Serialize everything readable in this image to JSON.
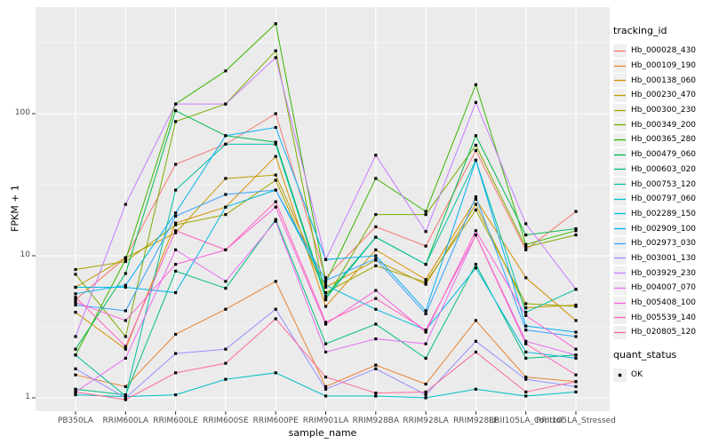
{
  "figure": {
    "background": "#FFFFFF",
    "panel_bg": "#EBEBEB",
    "grid_color": "#FFFFFF",
    "tick_label_color": "#4D4D4D",
    "axis_title_color": "#000000",
    "legend_key_bg": "#F0F0F0",
    "point_color": "#000000"
  },
  "chart_data": {
    "type": "line",
    "title": "",
    "xlabel": "sample_name",
    "ylabel": "FPKM + 1",
    "y_scale": "log10",
    "y_ticks": [
      1,
      10,
      100
    ],
    "ylim": [
      0.8,
      550
    ],
    "grid": true,
    "legend_position": "right",
    "legend_title": "tracking_id",
    "quant_legend": {
      "title": "quant_status",
      "items": [
        "OK"
      ]
    },
    "point_marker": "black-square",
    "categories": [
      "PB350LA",
      "RRIM600LA",
      "RRIM600LE",
      "RRIM600SE",
      "RRIM600PE",
      "RRIM901LA",
      "RRIM928BA",
      "RRIM928LA",
      "RRIM928LE",
      "RRII105LA_Control",
      "RRII105LA_Stressed"
    ],
    "series": [
      {
        "name": "Hb_000028_430",
        "color": "#F8766D",
        "values": [
          4.9,
          9.7,
          44,
          61,
          100,
          7.0,
          16,
          11.7,
          55,
          11,
          20.5
        ]
      },
      {
        "name": "Hb_000109_190",
        "color": "#EA8331",
        "values": [
          1.45,
          1.2,
          2.8,
          4.2,
          6.6,
          1.2,
          1.7,
          1.25,
          3.5,
          1.4,
          1.3
        ]
      },
      {
        "name": "Hb_000138_060",
        "color": "#D89000",
        "values": [
          4.0,
          2.2,
          17,
          22,
          50,
          4.4,
          11,
          6.8,
          25,
          7.0,
          3.5
        ]
      },
      {
        "name": "Hb_000230_470",
        "color": "#C09B00",
        "values": [
          6.0,
          9.7,
          14.5,
          35,
          37,
          6.0,
          9.3,
          6.3,
          23,
          4.3,
          4.5
        ]
      },
      {
        "name": "Hb_000300_230",
        "color": "#A3A500",
        "values": [
          8.0,
          9.1,
          16.5,
          19.5,
          34,
          5.5,
          8.5,
          6.5,
          21,
          4.6,
          4.4
        ]
      },
      {
        "name": "Hb_000349_200",
        "color": "#7CAE00",
        "values": [
          7.4,
          2.7,
          88,
          117,
          277,
          4.9,
          19.5,
          19.5,
          60,
          11.5,
          14
        ]
      },
      {
        "name": "Hb_000365_280",
        "color": "#39B600",
        "values": [
          2.0,
          9.4,
          117,
          200,
          430,
          6.5,
          35,
          20.5,
          160,
          12,
          15
        ]
      },
      {
        "name": "Hb_000479_060",
        "color": "#00BB4E",
        "values": [
          2.2,
          7.5,
          105,
          70,
          63,
          5.2,
          13.5,
          8.7,
          70,
          14,
          15.5
        ]
      },
      {
        "name": "Hb_000603_020",
        "color": "#00BF7D",
        "values": [
          1.15,
          1.05,
          7.8,
          5.9,
          18,
          2.4,
          3.3,
          1.9,
          8.7,
          1.9,
          2.0
        ]
      },
      {
        "name": "Hb_000753_120",
        "color": "#00C1A3",
        "values": [
          2.0,
          1.03,
          29,
          61,
          61,
          5.0,
          13.5,
          8.7,
          47,
          4.0,
          5.8
        ]
      },
      {
        "name": "Hb_000797_060",
        "color": "#00BFC4",
        "values": [
          1.05,
          1.02,
          1.05,
          1.35,
          1.5,
          1.03,
          1.03,
          1.0,
          1.15,
          1.03,
          1.1
        ]
      },
      {
        "name": "Hb_002289_150",
        "color": "#00BAE0",
        "values": [
          6.0,
          6.0,
          5.5,
          22,
          29,
          6.2,
          4.2,
          3.0,
          8.2,
          2.1,
          1.9
        ]
      },
      {
        "name": "Hb_002909_100",
        "color": "#00B0F6",
        "values": [
          5.4,
          6.2,
          20,
          70,
          80,
          9.4,
          10,
          4.1,
          47,
          3.2,
          2.9
        ]
      },
      {
        "name": "Hb_002973_030",
        "color": "#35A2FF",
        "values": [
          4.5,
          4.1,
          19,
          27,
          29,
          6.7,
          9.5,
          3.9,
          26,
          3.0,
          2.7
        ]
      },
      {
        "name": "Hb_003001_130",
        "color": "#9590FF",
        "values": [
          1.6,
          1.0,
          2.05,
          2.2,
          4.2,
          1.15,
          1.6,
          1.05,
          2.5,
          1.35,
          1.2
        ]
      },
      {
        "name": "Hb_003929_230",
        "color": "#C77CFF",
        "values": [
          2.7,
          23,
          117,
          117,
          248,
          9.4,
          51,
          14.8,
          120,
          16.8,
          5.8
        ]
      },
      {
        "name": "Hb_004007_070",
        "color": "#E76BF3",
        "values": [
          1.1,
          1.9,
          11,
          6.6,
          17.5,
          2.1,
          2.6,
          2.4,
          14,
          2.5,
          2.0
        ]
      },
      {
        "name": "Hb_005408_100",
        "color": "#FA62DB",
        "values": [
          4.7,
          3.5,
          8.7,
          11,
          22,
          3.3,
          5.7,
          2.9,
          15,
          3.8,
          2.2
        ]
      },
      {
        "name": "Hb_005539_140",
        "color": "#FF62BC",
        "values": [
          5.1,
          2.3,
          15,
          11,
          24,
          3.4,
          5.0,
          3.0,
          14,
          2.4,
          1.45
        ]
      },
      {
        "name": "Hb_020805_120",
        "color": "#FF6A98",
        "values": [
          1.1,
          0.97,
          1.5,
          1.75,
          3.6,
          1.4,
          1.08,
          1.1,
          2.1,
          1.1,
          1.3
        ]
      }
    ]
  }
}
